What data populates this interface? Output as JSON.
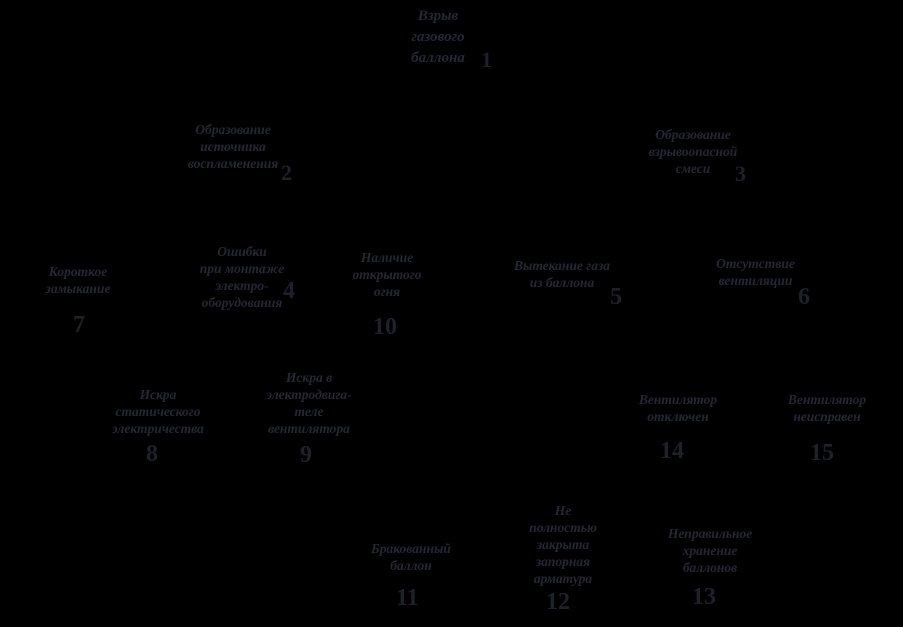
{
  "diagram": {
    "type": "fault-tree",
    "colors": {
      "background": "#000000",
      "label_text": "#232834",
      "number_text": "#1d212b"
    },
    "nodes": [
      {
        "id": 1,
        "label": "Взрыв\nгазового\nбаллона",
        "number": "1"
      },
      {
        "id": 2,
        "label": "Образование\nисточника\nвоспламенения",
        "number": "2"
      },
      {
        "id": 3,
        "label": "Образование\nвзрывоопасной\nсмеси",
        "number": "3"
      },
      {
        "id": 4,
        "label": "Ошибки\nпри монтаже\nэлектро-\nоборудования",
        "number": "4"
      },
      {
        "id": 5,
        "label": "Вытекание газа\nиз баллона",
        "number": "5"
      },
      {
        "id": 6,
        "label": "Отсутствие\nвентиляции",
        "number": "6"
      },
      {
        "id": 7,
        "label": "Короткое\nзамыкание",
        "number": "7"
      },
      {
        "id": 8,
        "label": "Искра\nстатического\nэлектричества",
        "number": "8"
      },
      {
        "id": 9,
        "label": "Искра в\nэлектродвига-\nтеле\nвентилятора",
        "number": "9"
      },
      {
        "id": 10,
        "label": "Наличие\nоткрытого\nогня",
        "number": "10"
      },
      {
        "id": 11,
        "label": "Бракованный\nбаллон",
        "number": "11"
      },
      {
        "id": 12,
        "label": "Не\nполностью\nзакрыта\nзапорная\nарматура",
        "number": "12"
      },
      {
        "id": 13,
        "label": "Неправильное\nхранение\nбаллонов",
        "number": "13"
      },
      {
        "id": 14,
        "label": "Вентилятор\nотключен",
        "number": "14"
      },
      {
        "id": 15,
        "label": "Вентилятор\nнеисправен",
        "number": "15"
      }
    ]
  }
}
